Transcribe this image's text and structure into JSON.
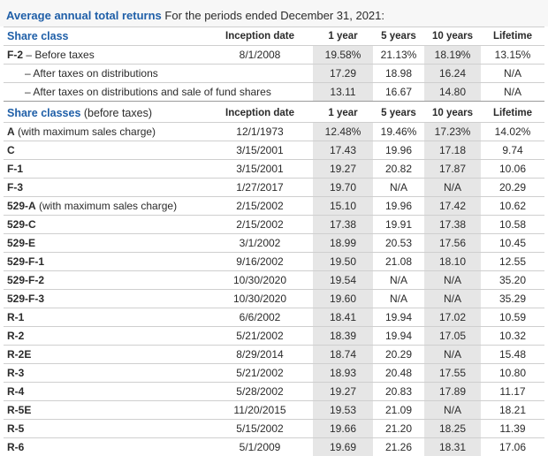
{
  "title": {
    "accent": "Average annual total returns",
    "rest": " For the periods ended December 31, 2021:"
  },
  "table1": {
    "headers": [
      "Share class",
      "Inception date",
      "1 year",
      "5 years",
      "10 years",
      "Lifetime"
    ],
    "rows": [
      {
        "label": "F-2",
        "label_rest": " – Before taxes",
        "inception": "8/1/2008",
        "y1": "19.58%",
        "y5": "21.13%",
        "y10": "18.19%",
        "life": "13.15%"
      },
      {
        "label": "– After taxes on distributions",
        "inception": "",
        "y1": "17.29",
        "y5": "18.98",
        "y10": "16.24",
        "life": "N/A"
      },
      {
        "label": "– After taxes on distributions and sale of fund shares",
        "inception": "",
        "y1": "13.11",
        "y5": "16.67",
        "y10": "14.80",
        "life": "N/A"
      }
    ]
  },
  "table2": {
    "headers": [
      "Share classes",
      " (before taxes)",
      "Inception date",
      "1 year",
      "5 years",
      "10 years",
      "Lifetime"
    ],
    "rows": [
      {
        "label": "A",
        "label_rest": " (with maximum sales charge)",
        "inception": "12/1/1973",
        "y1": "12.48%",
        "y5": "19.46%",
        "y10": "17.23%",
        "life": "14.02%"
      },
      {
        "label": "C",
        "label_rest": "",
        "inception": "3/15/2001",
        "y1": "17.43",
        "y5": "19.96",
        "y10": "17.18",
        "life": "9.74"
      },
      {
        "label": "F-1",
        "label_rest": "",
        "inception": "3/15/2001",
        "y1": "19.27",
        "y5": "20.82",
        "y10": "17.87",
        "life": "10.06"
      },
      {
        "label": "F-3",
        "label_rest": "",
        "inception": "1/27/2017",
        "y1": "19.70",
        "y5": "N/A",
        "y10": "N/A",
        "life": "20.29"
      },
      {
        "label": "529-A",
        "label_rest": " (with maximum sales charge)",
        "inception": "2/15/2002",
        "y1": "15.10",
        "y5": "19.96",
        "y10": "17.42",
        "life": "10.62"
      },
      {
        "label": "529-C",
        "label_rest": "",
        "inception": "2/15/2002",
        "y1": "17.38",
        "y5": "19.91",
        "y10": "17.38",
        "life": "10.58"
      },
      {
        "label": "529-E",
        "label_rest": "",
        "inception": "3/1/2002",
        "y1": "18.99",
        "y5": "20.53",
        "y10": "17.56",
        "life": "10.45"
      },
      {
        "label": "529-F-1",
        "label_rest": "",
        "inception": "9/16/2002",
        "y1": "19.50",
        "y5": "21.08",
        "y10": "18.10",
        "life": "12.55"
      },
      {
        "label": "529-F-2",
        "label_rest": "",
        "inception": "10/30/2020",
        "y1": "19.54",
        "y5": "N/A",
        "y10": "N/A",
        "life": "35.20"
      },
      {
        "label": "529-F-3",
        "label_rest": "",
        "inception": "10/30/2020",
        "y1": "19.60",
        "y5": "N/A",
        "y10": "N/A",
        "life": "35.29"
      },
      {
        "label": "R-1",
        "label_rest": "",
        "inception": "6/6/2002",
        "y1": "18.41",
        "y5": "19.94",
        "y10": "17.02",
        "life": "10.59"
      },
      {
        "label": "R-2",
        "label_rest": "",
        "inception": "5/21/2002",
        "y1": "18.39",
        "y5": "19.94",
        "y10": "17.05",
        "life": "10.32"
      },
      {
        "label": "R-2E",
        "label_rest": "",
        "inception": "8/29/2014",
        "y1": "18.74",
        "y5": "20.29",
        "y10": "N/A",
        "life": "15.48"
      },
      {
        "label": "R-3",
        "label_rest": "",
        "inception": "5/21/2002",
        "y1": "18.93",
        "y5": "20.48",
        "y10": "17.55",
        "life": "10.80"
      },
      {
        "label": "R-4",
        "label_rest": "",
        "inception": "5/28/2002",
        "y1": "19.27",
        "y5": "20.83",
        "y10": "17.89",
        "life": "11.17"
      },
      {
        "label": "R-5E",
        "label_rest": "",
        "inception": "11/20/2015",
        "y1": "19.53",
        "y5": "21.09",
        "y10": "N/A",
        "life": "18.21"
      },
      {
        "label": "R-5",
        "label_rest": "",
        "inception": "5/15/2002",
        "y1": "19.66",
        "y5": "21.20",
        "y10": "18.25",
        "life": "11.39"
      },
      {
        "label": "R-6",
        "label_rest": "",
        "inception": "5/1/2009",
        "y1": "19.69",
        "y5": "21.26",
        "y10": "18.31",
        "life": "17.06"
      }
    ]
  },
  "colors": {
    "accent": "#1f5fa8",
    "shade": "#e6e6e6",
    "rule": "#cfcfcf"
  }
}
